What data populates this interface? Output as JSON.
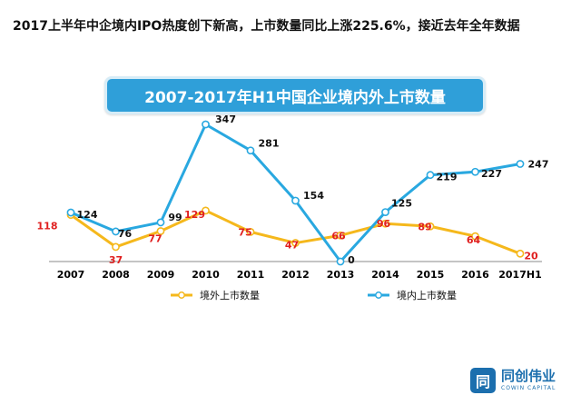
{
  "headline": "2017上半年中企境内IPO热度创下新高，上市数量同比上涨225.6%，接近去年全年数据",
  "logo": {
    "mark": "同",
    "cn": "同创伟业",
    "en": "COWIN CAPITAL"
  },
  "colors": {
    "domestic": "#29a8e0",
    "overseas": "#f5b81c",
    "overseas_label": "#e02020",
    "axis": "#000000"
  },
  "chart_data": {
    "type": "line",
    "title": "2007-2017年H1中国企业境内外上市数量",
    "categories": [
      "2007",
      "2008",
      "2009",
      "2010",
      "2011",
      "2012",
      "2013",
      "2014",
      "2015",
      "2016",
      "2017H1"
    ],
    "series": [
      {
        "name": "境外上市数量",
        "values": [
          118,
          37,
          77,
          129,
          75,
          47,
          66,
          96,
          89,
          64,
          20
        ]
      },
      {
        "name": "境内上市数量",
        "values": [
          124,
          76,
          99,
          347,
          281,
          154,
          0,
          125,
          219,
          227,
          247
        ]
      }
    ],
    "ylim": [
      0,
      360
    ],
    "legend_position": "bottom"
  }
}
